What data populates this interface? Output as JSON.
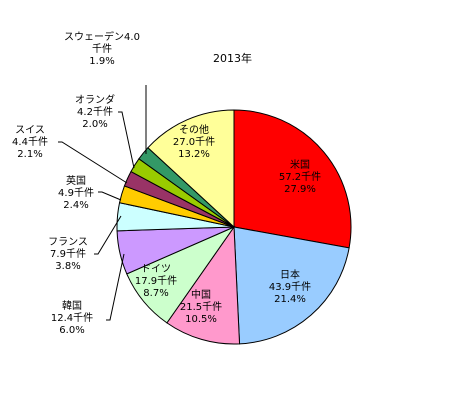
{
  "chart_data": {
    "type": "pie",
    "title": "2013年",
    "start": "12 o'clock, clockwise",
    "slices": [
      {
        "name": "米国",
        "value": 57.2,
        "value_text": "57.2千件",
        "percent_text": "27.9%",
        "color": "#ff0000"
      },
      {
        "name": "日本",
        "value": 43.9,
        "value_text": "43.9千件",
        "percent_text": "21.4%",
        "color": "#99ccff"
      },
      {
        "name": "中国",
        "value": 21.5,
        "value_text": "21.5千件",
        "percent_text": "10.5%",
        "color": "#ff99cc"
      },
      {
        "name": "ドイツ",
        "value": 17.9,
        "value_text": "17.9千件",
        "percent_text": "8.7%",
        "color": "#ccffcc"
      },
      {
        "name": "韓国",
        "value": 12.4,
        "value_text": "12.4千件",
        "percent_text": "6.0%",
        "color": "#cc99ff"
      },
      {
        "name": "フランス",
        "value": 7.9,
        "value_text": "7.9千件",
        "percent_text": "3.8%",
        "color": "#ccffff"
      },
      {
        "name": "英国",
        "value": 4.9,
        "value_text": "4.9千件",
        "percent_text": "2.4%",
        "color": "#ffcc00"
      },
      {
        "name": "スイス",
        "value": 4.4,
        "value_text": "4.4千件",
        "percent_text": "2.1%",
        "color": "#993366"
      },
      {
        "name": "オランダ",
        "value": 4.2,
        "value_text": "4.2千件",
        "percent_text": "2.0%",
        "color": "#99cc00"
      },
      {
        "name": "スウェーデン",
        "value": 4.0,
        "value_text": "4.0千件",
        "percent_text": "1.9%",
        "color": "#339966"
      },
      {
        "name": "その他",
        "value": 27.0,
        "value_text": "27.0千件",
        "percent_text": "13.2%",
        "color": "#ffff99"
      }
    ]
  }
}
